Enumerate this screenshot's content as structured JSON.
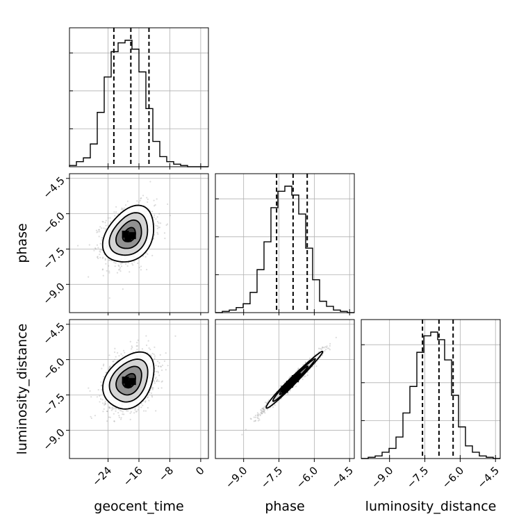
{
  "chart_data": {
    "type": "corner",
    "parameters": [
      "geocent_time",
      "phase",
      "luminosity_distance"
    ],
    "axis_labels": {
      "x": [
        "geocent_time",
        "phase",
        "luminosity_distance"
      ],
      "y": [
        "phase",
        "luminosity_distance"
      ]
    },
    "ranges": {
      "geocent_time": [
        -34,
        2
      ],
      "phase": [
        -10.2,
        -4.3
      ],
      "luminosity_distance": [
        -10.2,
        -4.3
      ]
    },
    "ticks": {
      "geocent_time": [
        -24,
        -16,
        -8,
        0
      ],
      "phase": [
        -9.0,
        -7.5,
        -6.0,
        -4.5
      ],
      "luminosity_distance": [
        -9.0,
        -7.5,
        -6.0,
        -4.5
      ]
    },
    "tick_labels": {
      "geocent_time": [
        "−24",
        "−16",
        "−8",
        "0"
      ],
      "phase": [
        "−9.0",
        "−7.5",
        "−6.0",
        "−4.5"
      ],
      "luminosity_distance": [
        "−9.0",
        "−7.5",
        "−6.0",
        "−4.5"
      ]
    },
    "quantiles": {
      "geocent_time": [
        -22.5,
        -18.1,
        -13.4
      ],
      "phase": [
        -7.6,
        -6.9,
        -6.3
      ],
      "luminosity_distance": [
        -7.6,
        -6.9,
        -6.3
      ]
    },
    "histograms": {
      "geocent_time": {
        "bin_edges": [
          -34,
          -32.2,
          -30.4,
          -28.6,
          -26.8,
          -25,
          -23.2,
          -21.4,
          -19.6,
          -17.8,
          -16,
          -14.2,
          -12.4,
          -10.6,
          -8.8,
          -7,
          -5.2,
          -3.4,
          -1.6,
          0.2,
          2
        ],
        "counts": [
          0.01,
          0.04,
          0.07,
          0.18,
          0.43,
          0.71,
          0.91,
          0.98,
          1.0,
          0.93,
          0.75,
          0.46,
          0.2,
          0.08,
          0.04,
          0.02,
          0.01,
          0.0,
          0.0,
          0.0
        ]
      },
      "phase": {
        "bin_edges": [
          -10.2,
          -9.905,
          -9.61,
          -9.315,
          -9.02,
          -8.725,
          -8.43,
          -8.135,
          -7.84,
          -7.545,
          -7.25,
          -6.955,
          -6.66,
          -6.365,
          -6.07,
          -5.775,
          -5.48,
          -5.185,
          -4.89,
          -4.595,
          -4.3
        ],
        "counts": [
          0.0,
          0.01,
          0.02,
          0.04,
          0.07,
          0.16,
          0.34,
          0.56,
          0.83,
          0.96,
          1.0,
          0.93,
          0.78,
          0.51,
          0.26,
          0.09,
          0.05,
          0.02,
          0.01,
          0.0
        ]
      },
      "luminosity_distance": {
        "bin_edges": [
          -10.2,
          -9.905,
          -9.61,
          -9.315,
          -9.02,
          -8.725,
          -8.43,
          -8.135,
          -7.84,
          -7.545,
          -7.25,
          -6.955,
          -6.66,
          -6.365,
          -6.07,
          -5.775,
          -5.48,
          -5.185,
          -4.89,
          -4.595,
          -4.3
        ],
        "counts": [
          0.0,
          0.01,
          0.02,
          0.05,
          0.08,
          0.17,
          0.36,
          0.57,
          0.84,
          0.97,
          1.0,
          0.94,
          0.78,
          0.5,
          0.25,
          0.1,
          0.05,
          0.02,
          0.01,
          0.0
        ]
      }
    },
    "joint": [
      {
        "x": "geocent_time",
        "y": "phase",
        "center": [
          -18.5,
          -6.9
        ],
        "sigma": [
          3.3,
          0.6
        ],
        "rho": 0.3
      },
      {
        "x": "geocent_time",
        "y": "luminosity_distance",
        "center": [
          -18.5,
          -6.9
        ],
        "sigma": [
          3.3,
          0.6
        ],
        "rho": 0.3
      },
      {
        "x": "phase",
        "y": "luminosity_distance",
        "center": [
          -6.9,
          -6.9
        ],
        "sigma": [
          0.6,
          0.6
        ],
        "rho": 0.985
      }
    ],
    "contour_levels_sigma": [
      0.5,
      1.0,
      1.5,
      2.0
    ],
    "grid": true,
    "colors": {
      "line": "#000000",
      "scatter": "#9a9a9a",
      "grid": "#b0b0b0"
    }
  }
}
